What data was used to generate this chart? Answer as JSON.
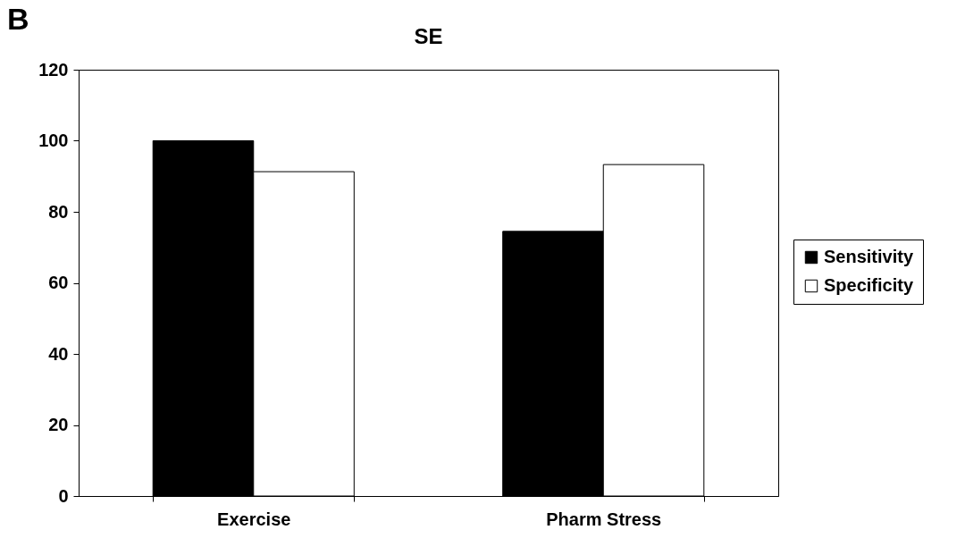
{
  "chart_data": {
    "type": "bar",
    "title": "SE",
    "annotations": [
      "B"
    ],
    "categories": [
      "Exercise",
      "Pharm Stress"
    ],
    "series": [
      {
        "name": "Sensitivity",
        "color": "#000000",
        "values": [
          100,
          74.5
        ]
      },
      {
        "name": "Specificity",
        "color": "#ffffff",
        "values": [
          91.3,
          93.3
        ]
      }
    ],
    "ylim": [
      0,
      120
    ],
    "yticks": [
      0,
      20,
      40,
      60,
      80,
      100,
      120
    ],
    "grid": false,
    "legend": "right"
  }
}
